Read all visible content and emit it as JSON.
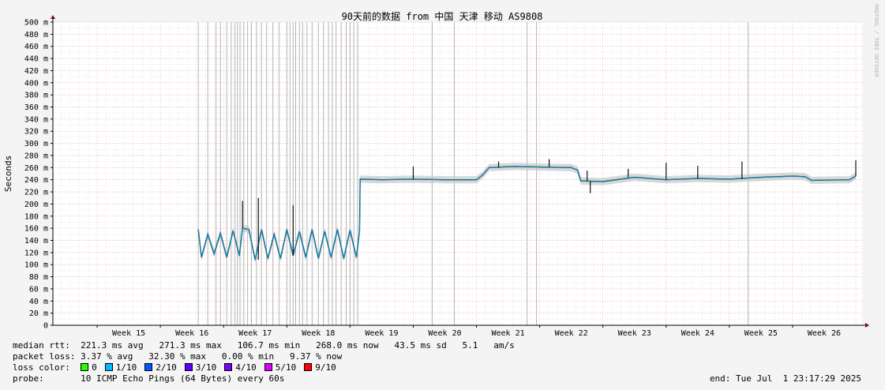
{
  "chart_data": {
    "type": "line",
    "title": "90天前的数据 from 中国 天津 移动 AS9808",
    "ylabel": "Seconds",
    "watermark": "RRDTOOL / TOBI OETIKER",
    "ylim": [
      0,
      500
    ],
    "y_ticks": [
      "0",
      "20 m",
      "40 m",
      "60 m",
      "80 m",
      "100 m",
      "120 m",
      "140 m",
      "160 m",
      "180 m",
      "200 m",
      "220 m",
      "240 m",
      "260 m",
      "280 m",
      "300 m",
      "320 m",
      "340 m",
      "360 m",
      "380 m",
      "400 m",
      "420 m",
      "440 m",
      "460 m",
      "480 m",
      "500 m"
    ],
    "x_ticks": [
      "Week 15",
      "Week 16",
      "Week 17",
      "Week 18",
      "Week 19",
      "Week 20",
      "Week 21",
      "Week 22",
      "Week 23",
      "Week 24",
      "Week 25",
      "Week 26"
    ],
    "xlim_weeks": [
      14.3,
      27.1
    ],
    "grid": true,
    "series": [
      {
        "type": "median_rtt_ms",
        "points": [
          [
            16.6,
            158
          ],
          [
            16.65,
            112
          ],
          [
            16.75,
            150
          ],
          [
            16.85,
            118
          ],
          [
            16.95,
            152
          ],
          [
            17.05,
            112
          ],
          [
            17.15,
            156
          ],
          [
            17.25,
            115
          ],
          [
            17.3,
            160
          ],
          [
            17.4,
            158
          ],
          [
            17.5,
            108
          ],
          [
            17.6,
            158
          ],
          [
            17.7,
            110
          ],
          [
            17.8,
            150
          ],
          [
            17.9,
            110
          ],
          [
            18.0,
            158
          ],
          [
            18.1,
            115
          ],
          [
            18.2,
            155
          ],
          [
            18.3,
            112
          ],
          [
            18.4,
            158
          ],
          [
            18.5,
            110
          ],
          [
            18.6,
            155
          ],
          [
            18.7,
            112
          ],
          [
            18.8,
            158
          ],
          [
            18.9,
            110
          ],
          [
            19.0,
            157
          ],
          [
            19.1,
            112
          ],
          [
            19.15,
            155
          ],
          [
            19.16,
            241
          ],
          [
            19.5,
            240
          ],
          [
            20.0,
            241
          ],
          [
            20.5,
            240
          ],
          [
            21.0,
            240
          ],
          [
            21.1,
            248
          ],
          [
            21.2,
            260
          ],
          [
            21.6,
            262
          ],
          [
            22.0,
            261
          ],
          [
            22.5,
            260
          ],
          [
            22.6,
            256
          ],
          [
            22.65,
            238
          ],
          [
            23.0,
            237
          ],
          [
            23.5,
            244
          ],
          [
            24.0,
            240
          ],
          [
            24.5,
            242
          ],
          [
            25.0,
            241
          ],
          [
            25.5,
            244
          ],
          [
            26.0,
            246
          ],
          [
            26.2,
            245
          ],
          [
            26.3,
            239
          ],
          [
            26.9,
            240
          ],
          [
            27.0,
            246
          ]
        ]
      }
    ],
    "spikes": [
      [
        17.3,
        205
      ],
      [
        17.55,
        210
      ],
      [
        18.1,
        198
      ],
      [
        20.0,
        262
      ],
      [
        21.35,
        270
      ],
      [
        22.15,
        274
      ],
      [
        22.75,
        255
      ],
      [
        23.4,
        258
      ],
      [
        24.0,
        268
      ],
      [
        24.5,
        263
      ],
      [
        25.2,
        270
      ],
      [
        27.0,
        272
      ]
    ],
    "dips": [
      [
        22.8,
        218
      ]
    ],
    "loss_lines_weeks": [
      16.6,
      16.75,
      16.88,
      16.95,
      17.05,
      17.12,
      17.18,
      17.22,
      17.26,
      17.32,
      17.38,
      17.44,
      17.52,
      17.6,
      17.68,
      17.78,
      17.88,
      18.0,
      18.05,
      18.1,
      18.14,
      18.2,
      18.25,
      18.32,
      18.4,
      18.5,
      18.58,
      18.66,
      18.72,
      18.78,
      18.86,
      18.94,
      19.0,
      19.06,
      19.12,
      20.3,
      20.65,
      21.8,
      21.95,
      25.3
    ]
  },
  "legend": {
    "median_rtt_label": "median rtt:",
    "median_rtt_values": "221.3 ms avg   271.3 ms max   106.7 ms min   268.0 ms now   43.5 ms sd   5.1   am/s",
    "packet_loss_label": "packet loss:",
    "packet_loss_values": "3.37 % avg   32.30 % max   0.00 % min   9.37 % now",
    "loss_color_label": "loss color:",
    "loss_colors": [
      {
        "label": "0",
        "color": "#26ff00"
      },
      {
        "label": "1/10",
        "color": "#00b8ff"
      },
      {
        "label": "2/10",
        "color": "#0059ff"
      },
      {
        "label": "3/10",
        "color": "#5e00ff"
      },
      {
        "label": "4/10",
        "color": "#7e00ff"
      },
      {
        "label": "5/10",
        "color": "#dd00ff"
      },
      {
        "label": "9/10",
        "color": "#ff0000"
      }
    ],
    "probe_label": "probe:",
    "probe_value": "10 ICMP Echo Pings (64 Bytes) every 60s",
    "end_time": "end: Tue Jul  1 23:17:29 2025"
  }
}
